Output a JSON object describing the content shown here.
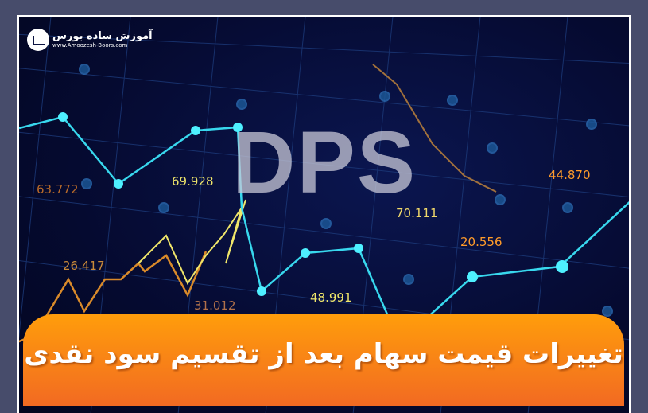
{
  "logo": {
    "title": "آموزش ساده بورس",
    "url": "www.Amoozesh-Boors.com"
  },
  "headline": "DPS",
  "banner_title": "تغییرات قیمت سهام بعد از تقسیم سود نقدی",
  "labels": [
    "63.772",
    "69.928",
    "26.417",
    "31.012",
    "48.991",
    "70.111",
    "20.556",
    "44.870"
  ],
  "colors": {
    "background": "#050a30",
    "frame": "#474c6b",
    "banner_top": "#ff9d0b",
    "banner_bottom": "#f26a22",
    "cyan_line": "#38d8ee",
    "yellow_line": "#f0e66a",
    "orange_line": "#d98a2a"
  }
}
